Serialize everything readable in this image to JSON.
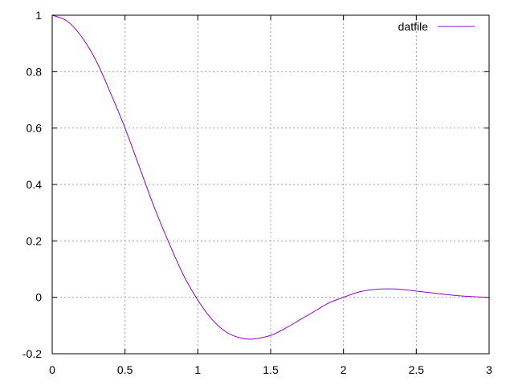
{
  "chart_data": {
    "type": "line",
    "title": "",
    "xlabel": "",
    "ylabel": "",
    "xlim": [
      0,
      3
    ],
    "ylim": [
      -0.2,
      1
    ],
    "xticks": [
      "0",
      "0.5",
      "1",
      "1.5",
      "2",
      "2.5",
      "3"
    ],
    "yticks": [
      "-0.2",
      "0",
      "0.2",
      "0.4",
      "0.6",
      "0.8",
      "1"
    ],
    "grid": true,
    "legend_position": "top-right",
    "series": [
      {
        "name": "datfile",
        "color": "#9400d3",
        "x": [
          0,
          0.1,
          0.2,
          0.3,
          0.4,
          0.5,
          0.6,
          0.7,
          0.8,
          0.9,
          1.0,
          1.1,
          1.2,
          1.3,
          1.38,
          1.5,
          1.6,
          1.7,
          1.8,
          1.9,
          2.0,
          2.1,
          2.2,
          2.3,
          2.4,
          2.5,
          2.6,
          2.7,
          2.8,
          2.9,
          3.0
        ],
        "y": [
          1.0,
          0.98,
          0.925,
          0.84,
          0.725,
          0.6,
          0.46,
          0.32,
          0.195,
          0.08,
          -0.01,
          -0.08,
          -0.125,
          -0.145,
          -0.148,
          -0.135,
          -0.11,
          -0.08,
          -0.05,
          -0.02,
          0.0,
          0.018,
          0.027,
          0.03,
          0.028,
          0.022,
          0.016,
          0.01,
          0.005,
          0.002,
          0.0
        ]
      }
    ]
  }
}
